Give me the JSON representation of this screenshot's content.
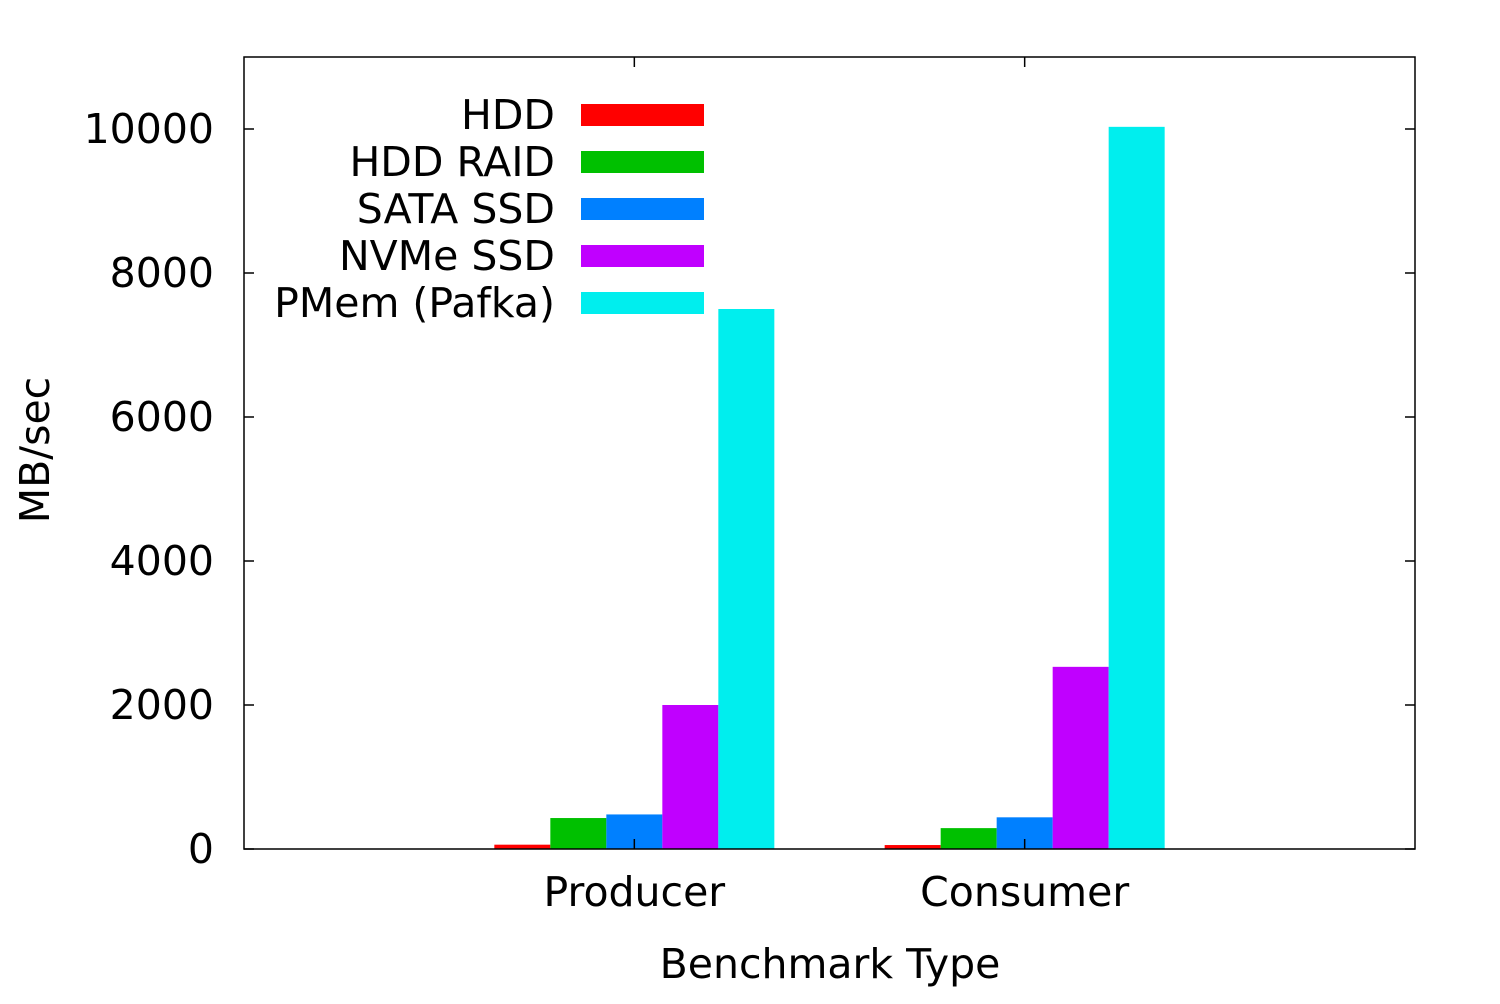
{
  "chart_data": {
    "type": "bar",
    "title": "",
    "xlabel": "Benchmark Type",
    "ylabel": "MB/sec",
    "ylim": [
      0,
      11000
    ],
    "yticks": [
      0,
      2000,
      4000,
      6000,
      8000,
      10000
    ],
    "grid": false,
    "legend_position": "top-left",
    "categories": [
      "Producer",
      "Consumer"
    ],
    "series": [
      {
        "name": "HDD",
        "color": "#ff0000",
        "values": [
          60,
          55
        ]
      },
      {
        "name": "HDD RAID",
        "color": "#00c000",
        "values": [
          430,
          290
        ]
      },
      {
        "name": "SATA SSD",
        "color": "#0080ff",
        "values": [
          480,
          440
        ]
      },
      {
        "name": "NVMe SSD",
        "color": "#c000ff",
        "values": [
          2000,
          2530
        ]
      },
      {
        "name": "PMem (Pafka)",
        "color": "#00eeee",
        "values": [
          7500,
          10030
        ]
      }
    ]
  }
}
